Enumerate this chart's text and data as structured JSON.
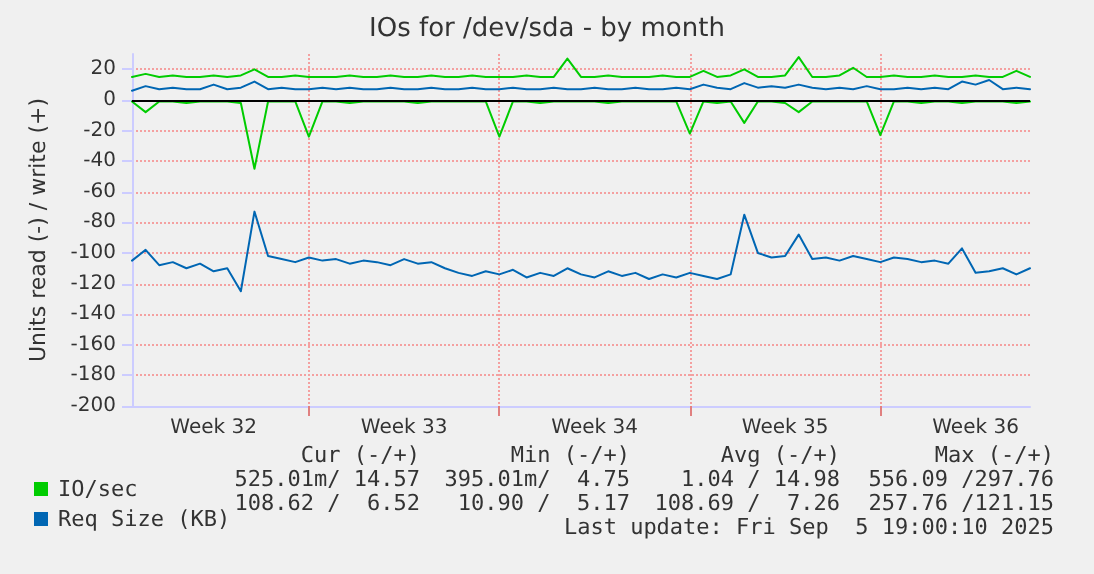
{
  "chart_data": {
    "type": "line",
    "title": "IOs for /dev/sda - by month",
    "ylabel": "Units read (-) / write (+)",
    "categories": [
      null,
      null,
      null,
      null,
      null,
      null,
      "Week 32",
      null,
      null,
      null,
      null,
      null,
      null,
      null,
      null,
      null,
      null,
      null,
      null,
      null,
      "Week 33",
      null,
      null,
      null,
      null,
      null,
      null,
      null,
      null,
      null,
      null,
      null,
      null,
      null,
      "Week 34",
      null,
      null,
      null,
      null,
      null,
      null,
      null,
      null,
      null,
      null,
      null,
      null,
      null,
      "Week 35",
      null,
      null,
      null,
      null,
      null,
      null,
      null,
      null,
      null,
      null,
      null,
      null,
      null,
      "Week 36",
      null,
      null,
      null,
      null
    ],
    "series": [
      {
        "color": "#00cc00",
        "values": [
          -1,
          -8,
          -1,
          -1,
          -2,
          -1,
          -1,
          -1,
          -2,
          -45,
          -1,
          -1,
          -1,
          -24,
          -1,
          -1,
          -2,
          -1,
          -1,
          -1,
          -1,
          -2,
          -1,
          -1,
          -1,
          -1,
          -1,
          -24,
          -1,
          -1,
          -2,
          -1,
          -1,
          -1,
          -1,
          -2,
          -1,
          -1,
          -1,
          -1,
          -1,
          -22,
          -1,
          -2,
          -1,
          -15,
          -1,
          -1,
          -2,
          -8,
          -1,
          -1,
          -1,
          -1,
          -1,
          -23,
          -1,
          -1,
          -2,
          -1,
          -1,
          -2,
          -1,
          -1,
          -1,
          -2,
          -1
        ]
      },
      {
        "name": "IO/sec",
        "color": "#00cc00",
        "values": [
          15,
          17,
          15,
          16,
          15,
          15,
          16,
          15,
          16,
          20,
          15,
          15,
          16,
          15,
          15,
          15,
          16,
          15,
          15,
          16,
          15,
          15,
          16,
          15,
          15,
          16,
          15,
          15,
          15,
          16,
          15,
          15,
          27,
          15,
          15,
          16,
          15,
          15,
          15,
          16,
          15,
          15,
          19,
          15,
          16,
          20,
          15,
          15,
          16,
          28,
          15,
          15,
          16,
          21,
          15,
          15,
          16,
          15,
          15,
          16,
          15,
          15,
          16,
          15,
          15,
          19,
          15
        ]
      },
      {
        "color": "#0066b3",
        "values": [
          -105,
          -98,
          -108,
          -106,
          -110,
          -107,
          -112,
          -110,
          -125,
          -73,
          -102,
          -104,
          -106,
          -103,
          -105,
          -104,
          -107,
          -105,
          -106,
          -108,
          -104,
          -107,
          -106,
          -110,
          -113,
          -115,
          -112,
          -114,
          -111,
          -116,
          -113,
          -115,
          -110,
          -114,
          -116,
          -112,
          -115,
          -113,
          -117,
          -114,
          -116,
          -113,
          -115,
          -117,
          -114,
          -75,
          -100,
          -103,
          -102,
          -88,
          -104,
          -103,
          -105,
          -102,
          -104,
          -106,
          -103,
          -104,
          -106,
          -105,
          -107,
          -97,
          -113,
          -112,
          -110,
          -114,
          -110
        ]
      },
      {
        "name": "Req Size (KB)",
        "color": "#0066b3",
        "values": [
          6,
          9,
          7,
          8,
          7,
          7,
          10,
          7,
          8,
          12,
          7,
          8,
          7,
          7,
          8,
          7,
          8,
          7,
          7,
          8,
          7,
          7,
          8,
          7,
          7,
          8,
          7,
          7,
          8,
          7,
          7,
          8,
          7,
          7,
          8,
          7,
          7,
          8,
          7,
          7,
          8,
          7,
          10,
          8,
          7,
          11,
          8,
          9,
          8,
          10,
          8,
          7,
          8,
          7,
          9,
          7,
          7,
          8,
          7,
          8,
          7,
          12,
          10,
          13,
          7,
          8,
          7
        ]
      }
    ],
    "ylim": [
      -200,
      30
    ],
    "yticks": [
      -200,
      -180,
      -160,
      -140,
      -120,
      -100,
      -80,
      -60,
      -40,
      -20,
      0,
      20
    ],
    "ref_lines": [
      {
        "axis": "y",
        "value": 0,
        "color": "#000000"
      }
    ],
    "grid": true,
    "legend": "bottom left",
    "marker": "none",
    "line_style": "solid",
    "annotations": [
      "Cur (-/+)",
      "Min (-/+)",
      "Avg (-/+)",
      "Max (-/+)",
      "525.01m/ 14.57",
      "395.01m/  4.75",
      "1.04 / 14.98",
      "556.09 /297.76",
      "108.62 /  6.52",
      "10.90 /  5.17",
      "108.69 /  7.26",
      "257.76 /121.15",
      "Last update: Fri Sep  5 19:00:10 2025"
    ]
  }
}
